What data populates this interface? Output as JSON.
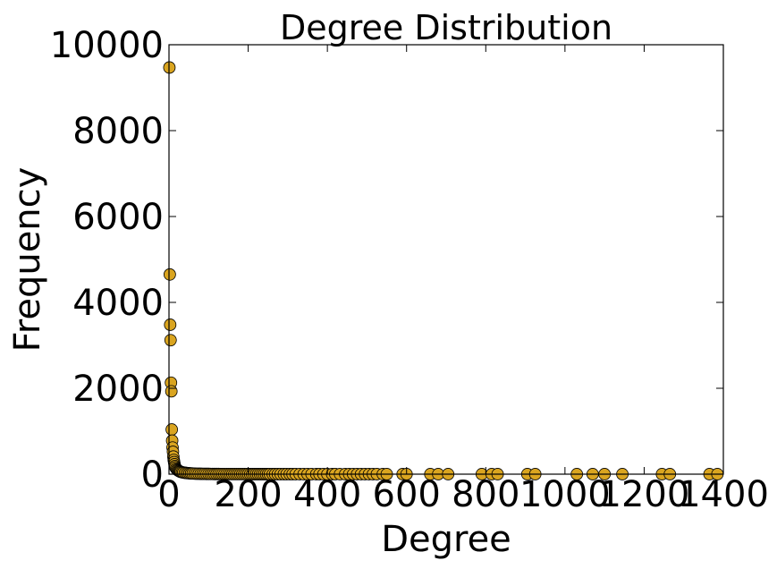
{
  "chart_data": {
    "type": "scatter",
    "title": "Degree Distribution",
    "xlabel": "Degree",
    "ylabel": "Frequency",
    "xlim": [
      0,
      1400
    ],
    "ylim": [
      0,
      10000
    ],
    "xticks": [
      "0",
      "200",
      "400",
      "600",
      "800",
      "1000",
      "1200",
      "1400"
    ],
    "yticks": [
      "0",
      "2000",
      "4000",
      "6000",
      "8000",
      "10000"
    ],
    "grid": false,
    "marker_color": "#daa520",
    "marker_edge": "#000000",
    "series": [
      {
        "points": [
          [
            1,
            9470
          ],
          [
            2,
            4650
          ],
          [
            3,
            3480
          ],
          [
            4,
            3120
          ],
          [
            5,
            2130
          ],
          [
            6,
            1930
          ],
          [
            7,
            1040
          ],
          [
            8,
            780
          ],
          [
            9,
            620
          ],
          [
            10,
            520
          ],
          [
            11,
            410
          ],
          [
            12,
            330
          ],
          [
            13,
            280
          ],
          [
            14,
            230
          ],
          [
            15,
            190
          ],
          [
            16,
            160
          ],
          [
            18,
            130
          ],
          [
            20,
            110
          ],
          [
            22,
            95
          ],
          [
            24,
            80
          ],
          [
            26,
            70
          ],
          [
            28,
            60
          ],
          [
            30,
            52
          ],
          [
            33,
            45
          ],
          [
            36,
            38
          ],
          [
            40,
            32
          ],
          [
            44,
            27
          ],
          [
            48,
            23
          ],
          [
            52,
            20
          ],
          [
            56,
            17
          ],
          [
            60,
            15
          ],
          [
            65,
            13
          ],
          [
            70,
            11
          ],
          [
            75,
            10
          ],
          [
            80,
            9
          ],
          [
            85,
            8
          ],
          [
            90,
            7
          ],
          [
            95,
            6
          ],
          [
            100,
            6
          ],
          [
            105,
            5
          ],
          [
            110,
            5
          ],
          [
            115,
            4
          ],
          [
            120,
            4
          ],
          [
            125,
            4
          ],
          [
            130,
            3
          ],
          [
            135,
            3
          ],
          [
            140,
            3
          ],
          [
            145,
            3
          ],
          [
            150,
            3
          ],
          [
            155,
            2
          ],
          [
            160,
            2
          ],
          [
            165,
            2
          ],
          [
            170,
            2
          ],
          [
            175,
            2
          ],
          [
            180,
            2
          ],
          [
            185,
            2
          ],
          [
            190,
            2
          ],
          [
            195,
            2
          ],
          [
            200,
            2
          ],
          [
            205,
            1
          ],
          [
            210,
            1
          ],
          [
            215,
            1
          ],
          [
            220,
            1
          ],
          [
            225,
            1
          ],
          [
            230,
            1
          ],
          [
            235,
            1
          ],
          [
            240,
            1
          ],
          [
            245,
            1
          ],
          [
            250,
            1
          ],
          [
            255,
            1
          ],
          [
            262,
            1
          ],
          [
            268,
            1
          ],
          [
            275,
            1
          ],
          [
            282,
            1
          ],
          [
            290,
            1
          ],
          [
            297,
            1
          ],
          [
            305,
            1
          ],
          [
            312,
            1
          ],
          [
            320,
            1
          ],
          [
            330,
            1
          ],
          [
            340,
            1
          ],
          [
            350,
            1
          ],
          [
            360,
            1
          ],
          [
            372,
            1
          ],
          [
            380,
            1
          ],
          [
            390,
            1
          ],
          [
            400,
            1
          ],
          [
            412,
            1
          ],
          [
            420,
            1
          ],
          [
            432,
            1
          ],
          [
            445,
            1
          ],
          [
            455,
            1
          ],
          [
            465,
            1
          ],
          [
            475,
            1
          ],
          [
            485,
            1
          ],
          [
            495,
            1
          ],
          [
            505,
            1
          ],
          [
            515,
            1
          ],
          [
            525,
            1
          ],
          [
            540,
            1
          ],
          [
            550,
            1
          ],
          [
            590,
            1
          ],
          [
            600,
            1
          ],
          [
            660,
            1
          ],
          [
            680,
            1
          ],
          [
            705,
            1
          ],
          [
            790,
            1
          ],
          [
            815,
            1
          ],
          [
            830,
            1
          ],
          [
            905,
            1
          ],
          [
            925,
            1
          ],
          [
            1030,
            1
          ],
          [
            1070,
            1
          ],
          [
            1100,
            1
          ],
          [
            1145,
            1
          ],
          [
            1245,
            1
          ],
          [
            1265,
            1
          ],
          [
            1365,
            1
          ],
          [
            1385,
            1
          ]
        ]
      }
    ]
  }
}
